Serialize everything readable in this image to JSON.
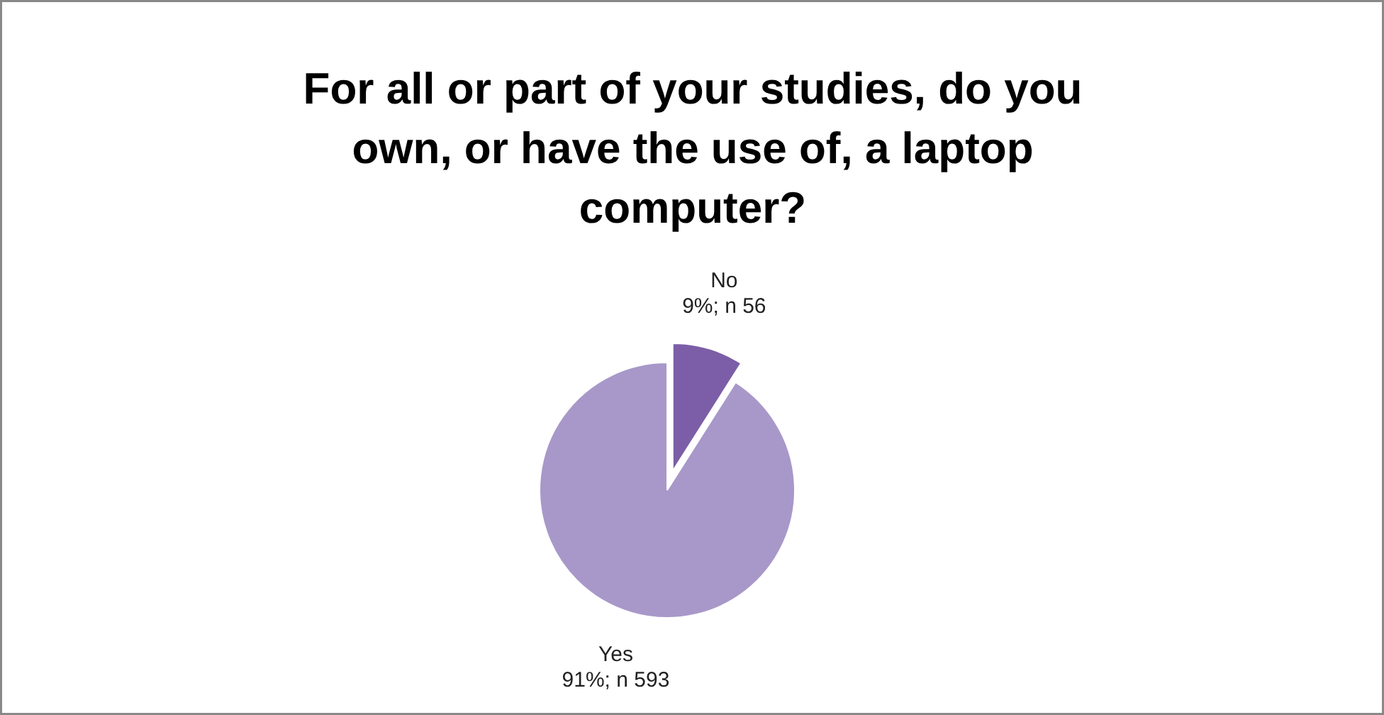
{
  "chart_data": {
    "type": "pie",
    "title": "For all or part of your studies, do you own, or have the use of, a laptop computer?",
    "categories": [
      "No",
      "Yes"
    ],
    "values": [
      9,
      91
    ],
    "value_labels": [
      "9%; n 56",
      "91%; n 593"
    ],
    "colors": [
      "#7b5ea7",
      "#a898c9"
    ]
  }
}
